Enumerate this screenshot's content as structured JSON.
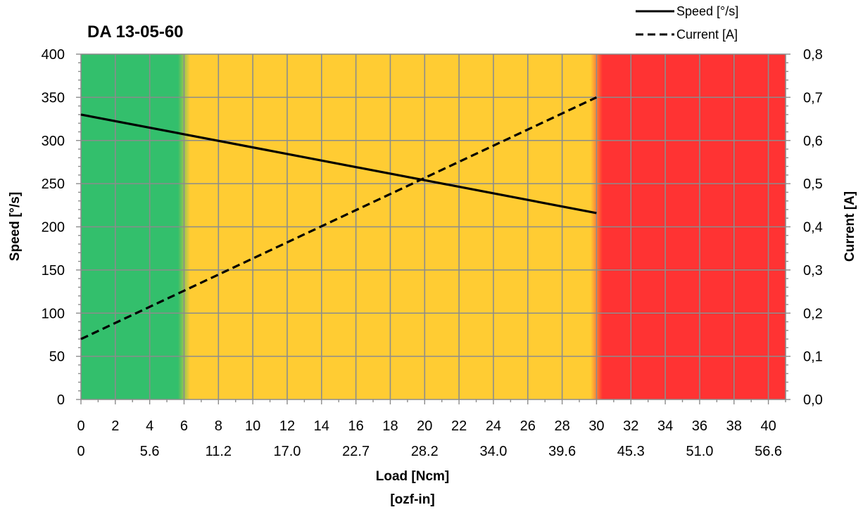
{
  "chart_data": {
    "type": "line",
    "title": "DA 13-05-60",
    "xlabel": "Load [Ncm]",
    "xlabel2": "[ozf-in]",
    "ylabel": "Speed  [°/s]",
    "y2label": "Current [A]",
    "xlim": [
      0,
      41
    ],
    "ylim": [
      0,
      400
    ],
    "y2lim": [
      0,
      0.8
    ],
    "x_ticks": [
      "0",
      "2",
      "4",
      "6",
      "8",
      "10",
      "12",
      "14",
      "16",
      "18",
      "20",
      "22",
      "24",
      "26",
      "28",
      "30",
      "32",
      "34",
      "36",
      "38",
      "40"
    ],
    "x2_ticks": [
      "0",
      "5.6",
      "11.2",
      "17.0",
      "22.7",
      "28.2",
      "34.0",
      "39.6",
      "45.3",
      "51.0",
      "56.6"
    ],
    "y_ticks": [
      "0",
      "50",
      "100",
      "150",
      "200",
      "250",
      "300",
      "350",
      "400"
    ],
    "y2_ticks": [
      "0,0",
      "0,1",
      "0,2",
      "0,3",
      "0,4",
      "0,5",
      "0,6",
      "0,7",
      "0,8"
    ],
    "grid": true,
    "legend_position": "top-right",
    "zones": [
      {
        "from": 0,
        "to": 6,
        "color": "#33bf6c"
      },
      {
        "from": 6,
        "to": 30,
        "color": "#ffcc33"
      },
      {
        "from": 30,
        "to": 41,
        "color": "#ff3333"
      }
    ],
    "series": [
      {
        "name": "Speed [°/s]",
        "axis": "left",
        "style": "solid",
        "x": [
          0,
          30
        ],
        "y": [
          330,
          216
        ]
      },
      {
        "name": "Current [A]",
        "axis": "right",
        "style": "dashed",
        "x": [
          0,
          30
        ],
        "y": [
          0.14,
          0.7
        ]
      }
    ]
  }
}
